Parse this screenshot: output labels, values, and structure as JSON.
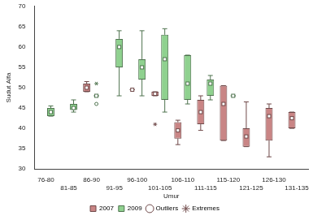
{
  "chart_data": {
    "type": "boxplot",
    "x_label": "Umur",
    "y_label": "Sudut Alfa",
    "categories": [
      "76-80",
      "81-85",
      "86-90",
      "91-95",
      "96-100",
      "101-105",
      "106-110",
      "111-115",
      "115-120",
      "121-125",
      "126-130",
      "131-135"
    ],
    "ylim": [
      30,
      70
    ],
    "yticks": [
      30,
      35,
      40,
      45,
      50,
      55,
      60,
      65,
      70
    ],
    "grid": false,
    "legend": "bottom",
    "outlier_label": "Outliers",
    "extreme_label": "Extremes",
    "series": [
      {
        "name": "2007",
        "color": "#c98585",
        "boxes": [
          null,
          null,
          [
            49,
            49,
            50,
            51,
            51.5
          ],
          null,
          [
            49.5,
            49.5,
            49.5,
            49.5,
            49.5
          ],
          [
            48,
            48,
            48.5,
            49,
            49
          ],
          [
            36,
            37.5,
            39.5,
            41.5,
            42
          ],
          [
            39.5,
            41,
            44,
            47,
            48
          ],
          [
            37,
            37,
            46,
            50.5,
            50.5
          ],
          [
            35.5,
            35.5,
            38,
            40,
            46.5
          ],
          [
            33,
            37,
            43,
            45,
            46
          ],
          [
            40,
            40,
            42.5,
            44,
            44
          ]
        ],
        "outliers": [
          [],
          [],
          [],
          [],
          [],
          [],
          [],
          [],
          [],
          [],
          [],
          []
        ],
        "extremes": [
          [],
          [],
          [],
          [],
          [],
          [
            41
          ],
          [],
          [],
          [],
          [],
          [],
          []
        ]
      },
      {
        "name": "2009",
        "color": "#8fd18f",
        "boxes": [
          [
            43,
            43,
            44,
            45,
            45.5
          ],
          [
            44,
            44.5,
            45,
            46,
            47
          ],
          [
            48,
            48,
            48,
            48,
            48
          ],
          [
            48,
            55,
            60,
            62,
            64
          ],
          [
            48,
            52,
            55,
            57,
            64
          ],
          [
            44,
            47,
            57,
            63,
            64.5
          ],
          [
            46,
            47,
            51,
            58,
            58
          ],
          [
            47,
            48,
            51,
            52,
            53
          ],
          [
            48,
            48,
            48,
            48,
            48
          ],
          null,
          null,
          null
        ],
        "outliers": [
          [],
          [],
          [
            46
          ],
          [],
          [],
          [],
          [],
          [],
          [],
          [],
          [],
          []
        ],
        "extremes": [
          [],
          [],
          [
            51
          ],
          [],
          [],
          [],
          [],
          [],
          [],
          [],
          [],
          []
        ]
      }
    ]
  }
}
